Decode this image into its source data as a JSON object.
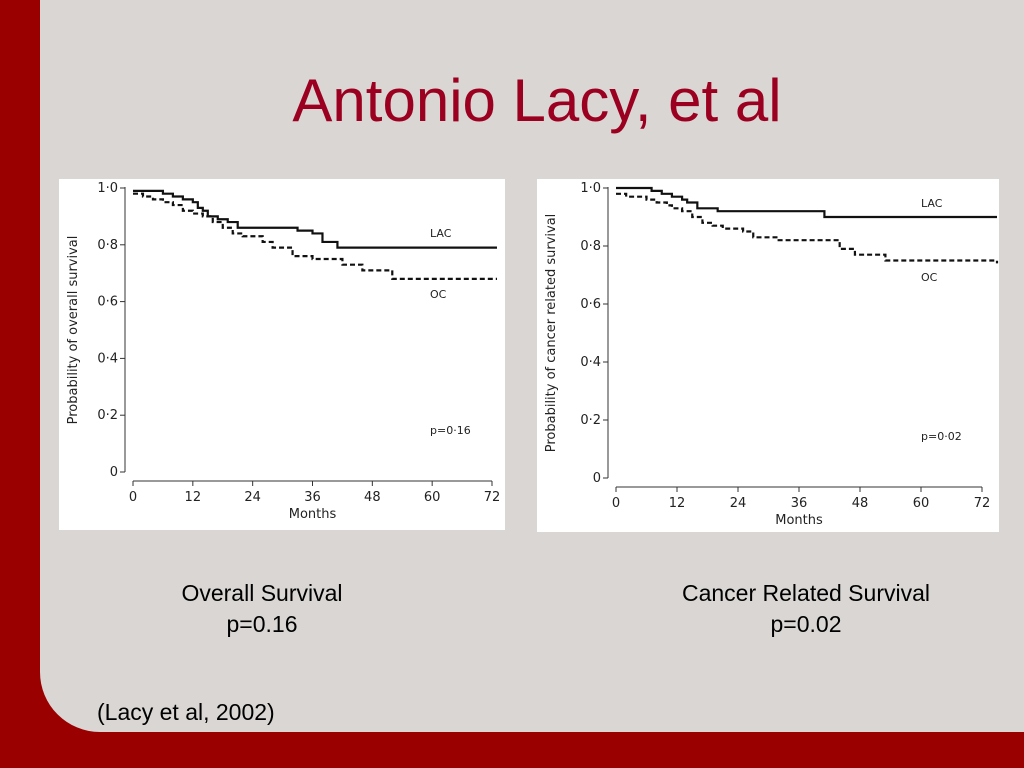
{
  "slide": {
    "title": "Antonio Lacy, et al",
    "citation": "(Lacy et al, 2002)",
    "accent_color": "#9b0000",
    "background_color": "#d9d6d3"
  },
  "captions": {
    "left": {
      "line1": "Overall Survival",
      "line2": "p=0.16"
    },
    "right": {
      "line1": "Cancer Related Survival",
      "line2": "p=0.02"
    }
  },
  "chart_data": [
    {
      "type": "line",
      "step": true,
      "xlabel": "Months",
      "ylabel": "Probability of overall survival",
      "xlim": [
        0,
        72
      ],
      "ylim": [
        0,
        1.0
      ],
      "xticks": [
        "0",
        "12",
        "24",
        "36",
        "48",
        "60",
        "72"
      ],
      "yticks": [
        "0",
        "0·2",
        "0·4",
        "0·6",
        "0·8",
        "1·0"
      ],
      "grid": false,
      "annotation": "p=0·16",
      "series": [
        {
          "name": "LAC",
          "style": "solid",
          "x": [
            0,
            6,
            8,
            10,
            12,
            13,
            14,
            15,
            17,
            19,
            21,
            24,
            30,
            33,
            36,
            38,
            41,
            48,
            60,
            73
          ],
          "y": [
            0.99,
            0.98,
            0.97,
            0.96,
            0.95,
            0.93,
            0.92,
            0.9,
            0.89,
            0.88,
            0.86,
            0.86,
            0.86,
            0.85,
            0.84,
            0.81,
            0.79,
            0.79,
            0.79,
            0.79
          ]
        },
        {
          "name": "OC",
          "style": "dashed",
          "x": [
            0,
            2,
            4,
            6,
            8,
            10,
            12,
            14,
            16,
            18,
            20,
            22,
            24,
            26,
            28,
            32,
            36,
            42,
            46,
            52,
            73
          ],
          "y": [
            0.98,
            0.97,
            0.96,
            0.95,
            0.94,
            0.92,
            0.91,
            0.9,
            0.88,
            0.86,
            0.84,
            0.83,
            0.83,
            0.81,
            0.79,
            0.76,
            0.75,
            0.73,
            0.71,
            0.68,
            0.68
          ]
        }
      ]
    },
    {
      "type": "line",
      "step": true,
      "xlabel": "Months",
      "ylabel": "Probability of cancer related survival",
      "xlim": [
        0,
        72
      ],
      "ylim": [
        0,
        1.0
      ],
      "xticks": [
        "0",
        "12",
        "24",
        "36",
        "48",
        "60",
        "72"
      ],
      "yticks": [
        "0",
        "0·2",
        "0·4",
        "0·6",
        "0·8",
        "1·0"
      ],
      "grid": false,
      "annotation": "p=0·02",
      "series": [
        {
          "name": "LAC",
          "style": "solid",
          "x": [
            0,
            2,
            7,
            9,
            11,
            13,
            14,
            16,
            20,
            24,
            30,
            36,
            41,
            48,
            60,
            75
          ],
          "y": [
            1.0,
            1.0,
            0.99,
            0.98,
            0.97,
            0.96,
            0.95,
            0.93,
            0.92,
            0.92,
            0.92,
            0.92,
            0.9,
            0.9,
            0.9,
            0.9
          ]
        },
        {
          "name": "OC",
          "style": "dashed",
          "x": [
            0,
            2,
            4,
            6,
            8,
            10,
            11,
            13,
            15,
            17,
            19,
            21,
            25,
            27,
            32,
            36,
            44,
            47,
            53,
            75
          ],
          "y": [
            0.98,
            0.97,
            0.97,
            0.96,
            0.95,
            0.94,
            0.93,
            0.92,
            0.9,
            0.88,
            0.87,
            0.86,
            0.85,
            0.83,
            0.82,
            0.82,
            0.79,
            0.77,
            0.75,
            0.74
          ]
        }
      ]
    }
  ]
}
